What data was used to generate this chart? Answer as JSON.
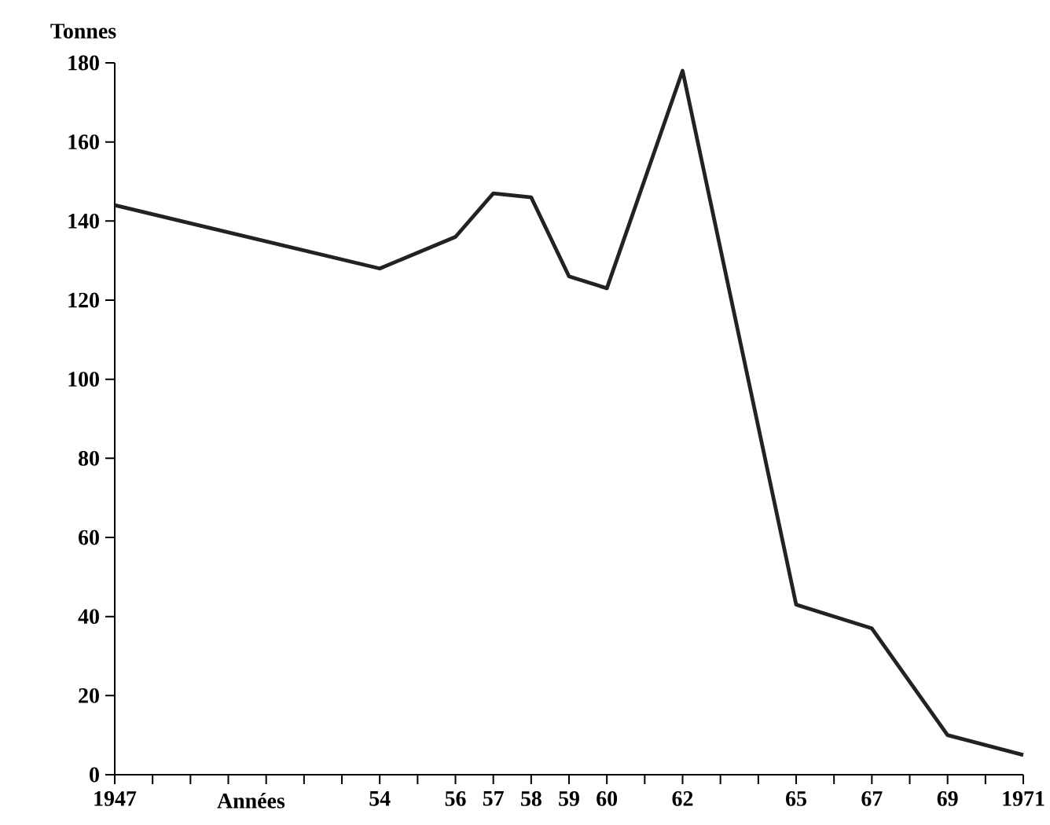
{
  "chart_data": {
    "type": "line",
    "xlabel": "Années",
    "ylabel": "Tonnes",
    "x": [
      1947,
      1954,
      1956,
      1957,
      1958,
      1959,
      1960,
      1962,
      1965,
      1967,
      1969,
      1971
    ],
    "series": [
      {
        "color": "#222222",
        "values": [
          144,
          128,
          136,
          147,
          146,
          126,
          123,
          178,
          43,
          37,
          10,
          5
        ]
      }
    ],
    "xlim": [
      1947,
      1971
    ],
    "ylim": [
      0,
      180
    ],
    "xticks": [
      1947,
      {
        "value": 1948,
        "label": null
      },
      {
        "value": 1949,
        "label": null
      },
      {
        "value": 1950,
        "label": null
      },
      {
        "value": 1951,
        "label": null
      },
      {
        "value": 1952,
        "label": null
      },
      {
        "value": 1953,
        "label": null
      },
      {
        "value": 1954,
        "label": "54"
      },
      {
        "value": 1955,
        "label": null
      },
      {
        "value": 1956,
        "label": "56"
      },
      {
        "value": 1957,
        "label": "57"
      },
      {
        "value": 1958,
        "label": "58"
      },
      {
        "value": 1959,
        "label": "59"
      },
      {
        "value": 1960,
        "label": "60"
      },
      {
        "value": 1961,
        "label": null
      },
      {
        "value": 1962,
        "label": "62"
      },
      {
        "value": 1963,
        "label": null
      },
      {
        "value": 1964,
        "label": null
      },
      {
        "value": 1965,
        "label": "65"
      },
      {
        "value": 1966,
        "label": null
      },
      {
        "value": 1967,
        "label": "67"
      },
      {
        "value": 1968,
        "label": null
      },
      {
        "value": 1969,
        "label": "69"
      },
      {
        "value": 1970,
        "label": null
      },
      1971
    ],
    "yticks": [
      0,
      20,
      40,
      60,
      80,
      100,
      120,
      140,
      160,
      180
    ]
  }
}
